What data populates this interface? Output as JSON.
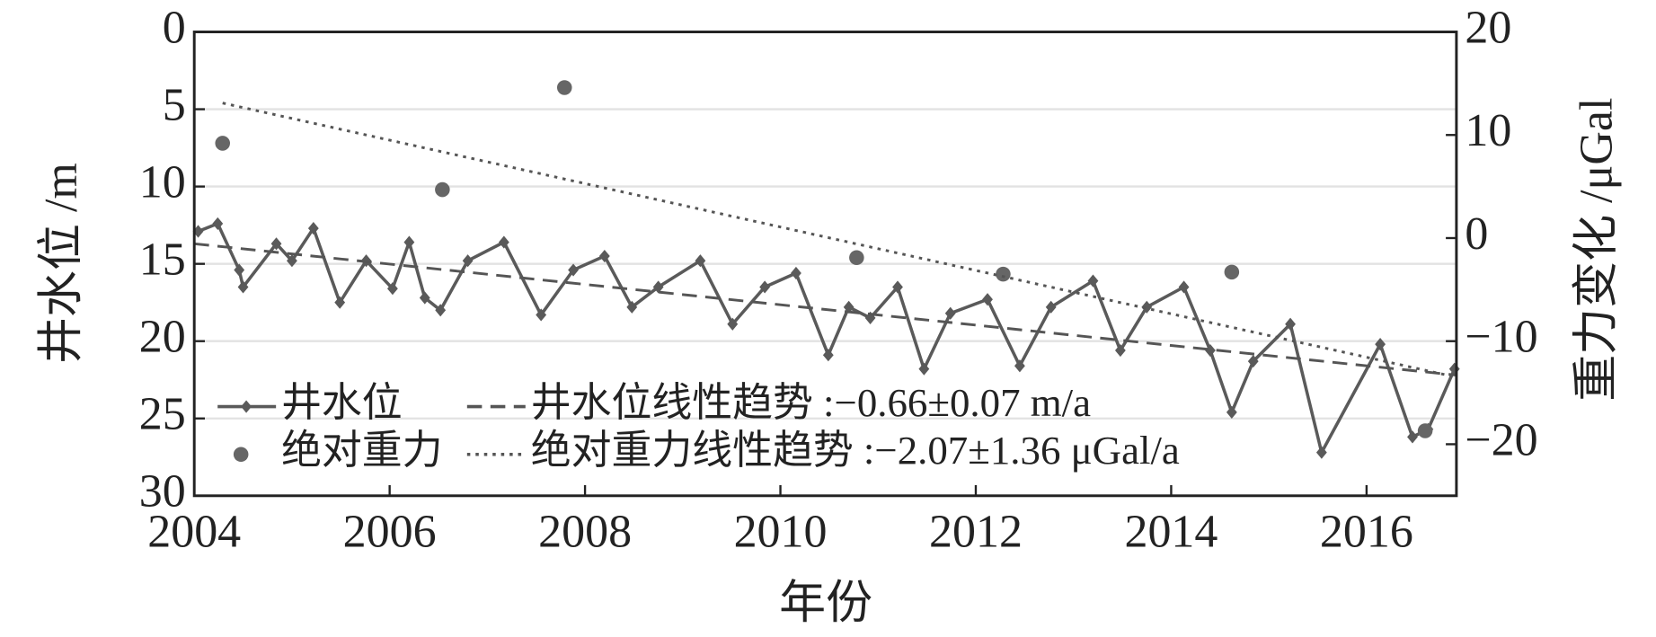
{
  "chart_data": {
    "type": "line",
    "xlabel": "年份",
    "ylabel": "井水位 /m",
    "y2label": "重力变化 /μGal",
    "xlim": [
      2004,
      2016.92
    ],
    "xticks": [
      2004,
      2006,
      2008,
      2010,
      2012,
      2014,
      2016
    ],
    "ylim": [
      30,
      0
    ],
    "yticks": [
      0,
      5,
      10,
      15,
      20,
      25,
      30
    ],
    "y2lim": [
      -25,
      20
    ],
    "y2ticks": [
      20,
      10,
      0,
      {
        "value": -10,
        "label": "−10"
      },
      {
        "value": -20,
        "label": "−20"
      }
    ],
    "grid": true,
    "series": [
      {
        "name": "井水位",
        "style": "line-marker",
        "color": "#5a5a5a",
        "x": [
          2004.04,
          2004.24,
          2004.46,
          2004.5,
          2004.84,
          2005.0,
          2005.22,
          2005.49,
          2005.76,
          2006.03,
          2006.2,
          2006.36,
          2006.52,
          2006.8,
          2007.17,
          2007.55,
          2007.88,
          2008.2,
          2008.48,
          2008.75,
          2009.18,
          2009.51,
          2009.84,
          2010.16,
          2010.49,
          2010.7,
          2010.92,
          2011.2,
          2011.47,
          2011.74,
          2012.12,
          2012.45,
          2012.77,
          2013.2,
          2013.48,
          2013.75,
          2014.13,
          2014.4,
          2014.62,
          2014.84,
          2015.22,
          2015.54,
          2016.14,
          2016.47,
          2016.63,
          2016.9
        ],
        "values": [
          12.9,
          12.4,
          15.4,
          16.5,
          13.7,
          14.8,
          12.7,
          17.5,
          14.8,
          16.6,
          13.6,
          17.2,
          18.0,
          14.8,
          13.6,
          18.3,
          15.4,
          14.5,
          17.8,
          16.5,
          14.8,
          18.9,
          16.5,
          15.6,
          20.9,
          17.8,
          18.5,
          16.5,
          21.8,
          18.2,
          17.3,
          21.6,
          17.8,
          16.1,
          20.6,
          17.8,
          16.5,
          20.6,
          24.6,
          21.3,
          18.9,
          27.2,
          20.2,
          26.2,
          25.7,
          21.8
        ]
      },
      {
        "name": "井水位线性趋势 :−0.66±0.07 m/a",
        "style": "dashed",
        "color": "#555555",
        "x": [
          2004,
          2016.92
        ],
        "values": [
          13.7,
          22.2
        ]
      },
      {
        "name": "绝对重力",
        "style": "points",
        "color": "#666666",
        "axis": "y2",
        "x": [
          2004.29,
          2006.54,
          2007.79,
          2010.78,
          2012.28,
          2014.62,
          2016.6
        ],
        "values": [
          9.2,
          4.7,
          14.6,
          -1.9,
          -3.5,
          -3.3,
          -18.7
        ]
      },
      {
        "name": "绝对重力线性趋势 :−2.07±1.36 μGal/a",
        "style": "dotted",
        "color": "#555555",
        "axis": "y2",
        "x": [
          2004.29,
          2016.92
        ],
        "values": [
          13.1,
          -13.5
        ]
      }
    ]
  }
}
